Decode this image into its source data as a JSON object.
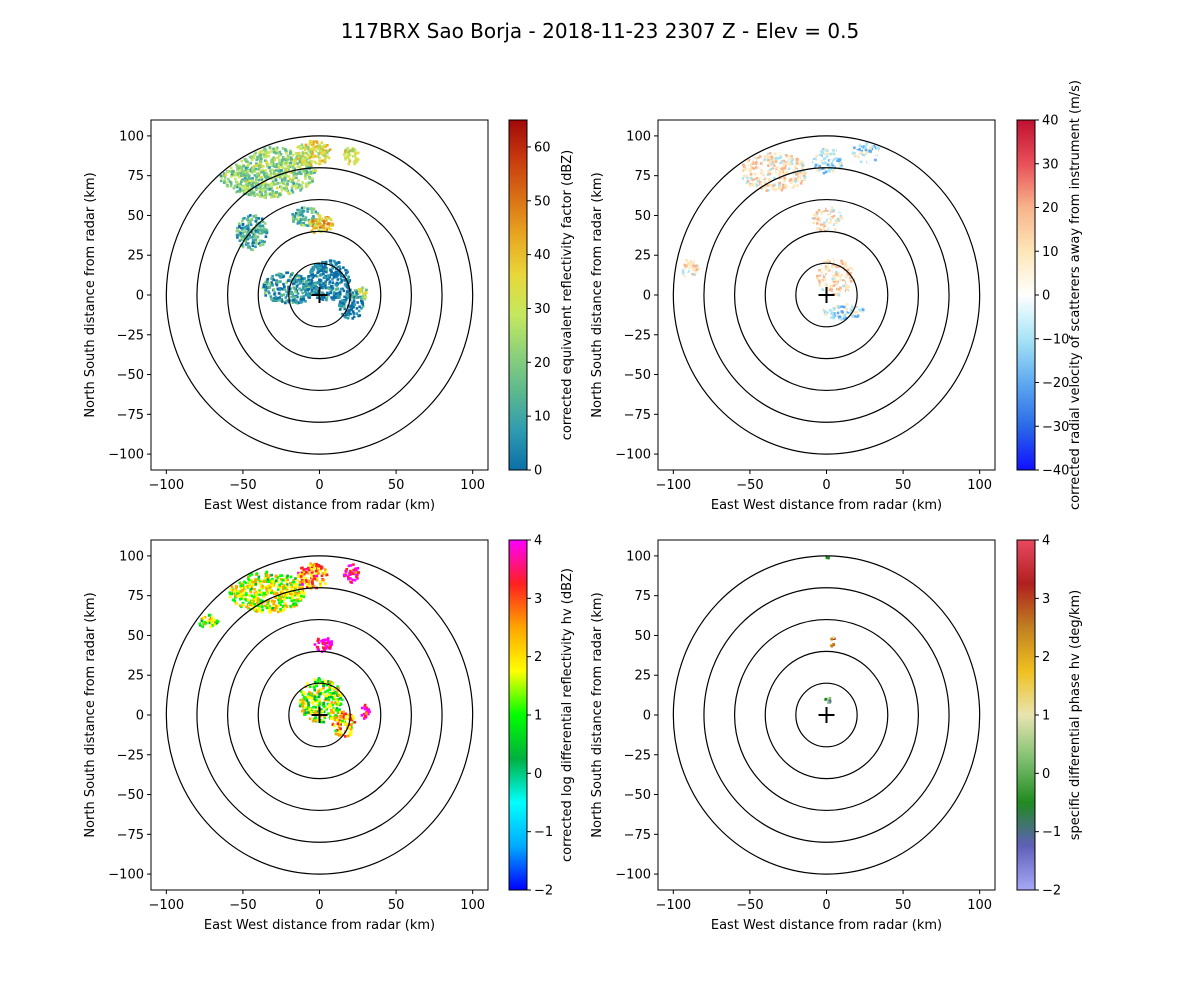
{
  "figure": {
    "title": "117BRX Sao Borja - 2018-11-23 2307 Z -  Elev = 0.5"
  },
  "chart_data": [
    {
      "type": "heatmap",
      "title": "",
      "xlabel": "East West distance from radar (km)",
      "ylabel": "North South distance from radar (km)",
      "xlim": [
        -110,
        110
      ],
      "ylim": [
        -110,
        110
      ],
      "xticks": [
        "−100",
        "−50",
        "0",
        "50",
        "100"
      ],
      "yticks": [
        "100",
        "75",
        "50",
        "25",
        "0",
        "−25",
        "−50",
        "−75",
        "−100"
      ],
      "range_rings_km": [
        20,
        40,
        60,
        80,
        100
      ],
      "colorbar": {
        "label": "corrected equivalent reflectivity factor (dBZ)",
        "min": 0,
        "max": 65,
        "ticks": [
          "0",
          "10",
          "20",
          "30",
          "40",
          "50",
          "60"
        ],
        "tick_values": [
          0,
          10,
          20,
          30,
          40,
          50,
          60
        ],
        "colors": [
          "#0b6fa6",
          "#2e9bb0",
          "#5cb88e",
          "#8dd17a",
          "#c5e85e",
          "#e8d73a",
          "#e8a820",
          "#d97016",
          "#c83a0e",
          "#a00808"
        ]
      },
      "echo_regions_km": [
        {
          "cx": -35,
          "cy": 78,
          "rx": 32,
          "ry": 16,
          "intensity": 0.35
        },
        {
          "cx": -5,
          "cy": 90,
          "rx": 12,
          "ry": 8,
          "intensity": 0.5
        },
        {
          "cx": 5,
          "cy": 10,
          "rx": 14,
          "ry": 13,
          "intensity": 0.05
        },
        {
          "cx": -20,
          "cy": 5,
          "rx": 18,
          "ry": 10,
          "intensity": 0.15
        },
        {
          "cx": 20,
          "cy": -5,
          "rx": 8,
          "ry": 10,
          "intensity": 0.08
        },
        {
          "cx": -10,
          "cy": 50,
          "rx": 10,
          "ry": 6,
          "intensity": 0.25
        },
        {
          "cx": 0,
          "cy": 45,
          "rx": 8,
          "ry": 6,
          "intensity": 0.6
        },
        {
          "cx": 28,
          "cy": 3,
          "rx": 4,
          "ry": 5,
          "intensity": 0.45
        },
        {
          "cx": 20,
          "cy": 88,
          "rx": 5,
          "ry": 6,
          "intensity": 0.5
        },
        {
          "cx": -45,
          "cy": 40,
          "rx": 10,
          "ry": 12,
          "intensity": 0.2
        }
      ]
    },
    {
      "type": "heatmap",
      "title": "",
      "xlabel": "East West distance from radar (km)",
      "ylabel": "North South distance from radar (km)",
      "xlim": [
        -110,
        110
      ],
      "ylim": [
        -110,
        110
      ],
      "xticks": [
        "−100",
        "−50",
        "0",
        "50",
        "100"
      ],
      "yticks": [
        "100",
        "75",
        "50",
        "25",
        "0",
        "−25",
        "−50",
        "−75",
        "−100"
      ],
      "range_rings_km": [
        20,
        40,
        60,
        80,
        100
      ],
      "colorbar": {
        "label": "corrected radial velocity of scatterers away from instrument (m/s)",
        "min": -40,
        "max": 40,
        "ticks": [
          "−40",
          "−30",
          "−20",
          "−10",
          "0",
          "10",
          "20",
          "30",
          "40"
        ],
        "tick_values": [
          -40,
          -30,
          -20,
          -10,
          0,
          10,
          20,
          30,
          40
        ],
        "colors": [
          "#1010ff",
          "#2a6ae8",
          "#5eaaf0",
          "#a8e4f6",
          "#ffffff",
          "#fde6b8",
          "#f8b48a",
          "#e8505a",
          "#c01030"
        ]
      },
      "echo_regions_km": [
        {
          "cx": -35,
          "cy": 78,
          "rx": 22,
          "ry": 12,
          "intensity": 0.58
        },
        {
          "cx": 0,
          "cy": 85,
          "rx": 10,
          "ry": 8,
          "intensity": 0.45
        },
        {
          "cx": 5,
          "cy": 12,
          "rx": 12,
          "ry": 12,
          "intensity": 0.6
        },
        {
          "cx": 10,
          "cy": -10,
          "rx": 14,
          "ry": 5,
          "intensity": 0.42
        },
        {
          "cx": 0,
          "cy": 48,
          "rx": 10,
          "ry": 8,
          "intensity": 0.57
        },
        {
          "cx": -90,
          "cy": 18,
          "rx": 6,
          "ry": 6,
          "intensity": 0.58
        },
        {
          "cx": 25,
          "cy": 90,
          "rx": 10,
          "ry": 6,
          "intensity": 0.43
        }
      ]
    },
    {
      "type": "heatmap",
      "title": "",
      "xlabel": "East West distance from radar (km)",
      "ylabel": "North South distance from radar (km)",
      "xlim": [
        -110,
        110
      ],
      "ylim": [
        -110,
        110
      ],
      "xticks": [
        "−100",
        "−50",
        "0",
        "50",
        "100"
      ],
      "yticks": [
        "100",
        "75",
        "50",
        "25",
        "0",
        "−25",
        "−50",
        "−75",
        "−100"
      ],
      "range_rings_km": [
        20,
        40,
        60,
        80,
        100
      ],
      "colorbar": {
        "label": "corrected log differential reflectivity hv (dBZ)",
        "min": -2,
        "max": 4,
        "ticks": [
          "−2",
          "−1",
          "0",
          "1",
          "2",
          "3",
          "4"
        ],
        "tick_values": [
          -2,
          -1,
          0,
          1,
          2,
          3,
          4
        ],
        "colors": [
          "#0000ff",
          "#00aaff",
          "#00ffff",
          "#00b040",
          "#00ff00",
          "#ffff00",
          "#ffa500",
          "#ff2020",
          "#ff00ff"
        ]
      },
      "echo_regions_km": [
        {
          "cx": -35,
          "cy": 78,
          "rx": 25,
          "ry": 13,
          "intensity": 0.6
        },
        {
          "cx": -5,
          "cy": 88,
          "rx": 10,
          "ry": 8,
          "intensity": 0.75
        },
        {
          "cx": 0,
          "cy": 10,
          "rx": 14,
          "ry": 14,
          "intensity": 0.55
        },
        {
          "cx": 15,
          "cy": -5,
          "rx": 8,
          "ry": 8,
          "intensity": 0.7
        },
        {
          "cx": 2,
          "cy": 45,
          "rx": 6,
          "ry": 5,
          "intensity": 0.95
        },
        {
          "cx": 29,
          "cy": 3,
          "rx": 3,
          "ry": 5,
          "intensity": 0.95
        },
        {
          "cx": 20,
          "cy": 90,
          "rx": 5,
          "ry": 6,
          "intensity": 0.9
        },
        {
          "cx": -75,
          "cy": 60,
          "rx": 8,
          "ry": 4,
          "intensity": 0.55
        }
      ]
    },
    {
      "type": "heatmap",
      "title": "",
      "xlabel": "East West distance from radar (km)",
      "ylabel": "North South distance from radar (km)",
      "xlim": [
        -110,
        110
      ],
      "ylim": [
        -110,
        110
      ],
      "xticks": [
        "−100",
        "−50",
        "0",
        "50",
        "100"
      ],
      "yticks": [
        "100",
        "75",
        "50",
        "25",
        "0",
        "−25",
        "−50",
        "−75",
        "−100"
      ],
      "range_rings_km": [
        20,
        40,
        60,
        80,
        100
      ],
      "colorbar": {
        "label": "specific differential phase hv (deg/km)",
        "min": -2,
        "max": 4,
        "ticks": [
          "−2",
          "−1",
          "0",
          "1",
          "2",
          "3",
          "4"
        ],
        "tick_values": [
          -2,
          -1,
          0,
          1,
          2,
          3,
          4
        ],
        "colors": [
          "#a8a8f8",
          "#6060b8",
          "#208a20",
          "#80c070",
          "#e8e4b0",
          "#f0c020",
          "#c08020",
          "#b02020",
          "#e84860"
        ]
      },
      "echo_regions_km": [
        {
          "cx": 3,
          "cy": 47,
          "rx": 2,
          "ry": 3,
          "intensity": 0.7
        },
        {
          "cx": 0,
          "cy": 10,
          "rx": 2,
          "ry": 2,
          "intensity": 0.3
        },
        {
          "cx": 0,
          "cy": 100,
          "rx": 1,
          "ry": 1,
          "intensity": 0.3
        }
      ]
    }
  ]
}
